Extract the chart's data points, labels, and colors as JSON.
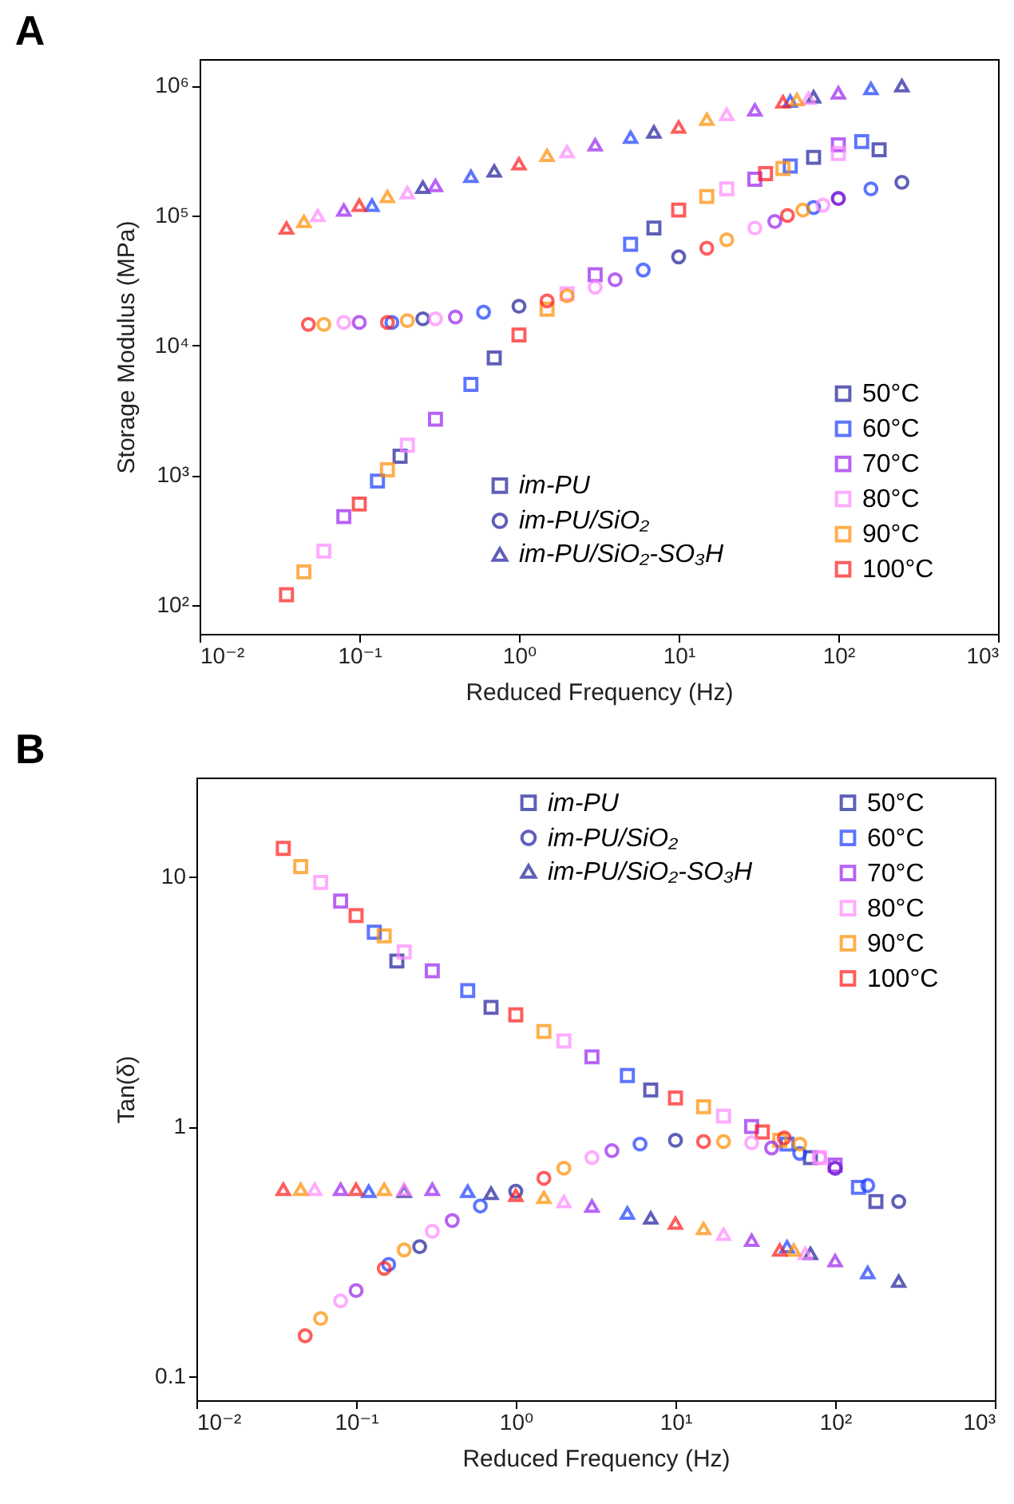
{
  "chart_data": [
    {
      "type": "scatter",
      "title": "A",
      "xlabel": "Reduced Frequency (Hz)",
      "ylabel": "Storage Modulus (MPa)",
      "log": "xy",
      "grid": false,
      "legend": "bottom right",
      "xlim": [
        0.01,
        1000
      ],
      "xticks": [
        {
          "value": 0.01,
          "label": "10⁻²"
        },
        {
          "value": 0.1,
          "label": "10⁻¹"
        },
        {
          "value": 1,
          "label": "10⁰"
        },
        {
          "value": 10,
          "label": "10¹"
        },
        {
          "value": 100,
          "label": "10²"
        },
        {
          "value": 1000,
          "label": "10³"
        }
      ],
      "ylim": [
        60,
        1600000
      ],
      "yticks": [
        {
          "value": 100,
          "label": "10²"
        },
        {
          "value": 1000,
          "label": "10³"
        },
        {
          "value": 10000,
          "label": "10⁴"
        },
        {
          "value": 100000,
          "label": "10⁵"
        },
        {
          "value": 1000000,
          "label": "10⁶"
        }
      ],
      "series": [
        {
          "name": "im-PU",
          "marker": "square",
          "color": "#1c1c9c",
          "x": [
            0.18,
            0.7,
            7,
            70,
            180,
            0.13,
            0.5,
            5,
            50,
            140,
            0.08,
            0.3,
            3,
            30,
            100,
            0.06,
            0.2,
            2,
            20,
            100,
            0.045,
            0.15,
            1.5,
            15,
            45,
            0.035,
            0.1,
            1,
            10,
            35
          ],
          "values": [
            1400,
            8000,
            80000,
            280000,
            320000,
            900,
            5000,
            60000,
            240000,
            370000,
            480,
            2700,
            35000,
            190000,
            350000,
            260,
            1700,
            25000,
            160000,
            300000,
            180,
            1100,
            19000,
            140000,
            230000,
            120,
            600,
            12000,
            110000,
            210000
          ],
          "colors": [
            "#1c1c9c",
            "#1c1c9c",
            "#1c1c9c",
            "#1c1c9c",
            "#1c1c9c",
            "#1a3cff",
            "#1a3cff",
            "#1a3cff",
            "#1a3cff",
            "#1a3cff",
            "#9a22ee",
            "#9a22ee",
            "#9a22ee",
            "#9a22ee",
            "#9a22ee",
            "#ff88ff",
            "#ff88ff",
            "#ff88ff",
            "#ff88ff",
            "#ff88ff",
            "#ff8c00",
            "#ff8c00",
            "#ff8c00",
            "#ff8c00",
            "#ff8c00",
            "#ff1a1a",
            "#ff1a1a",
            "#ff1a1a",
            "#ff1a1a",
            "#ff1a1a"
          ]
        },
        {
          "name": "im-PU/SiO₂",
          "marker": "circle",
          "color": "#1c1c9c",
          "x": [
            0.25,
            1,
            10,
            100,
            250,
            0.16,
            0.6,
            6,
            70,
            160,
            0.1,
            0.4,
            4,
            40,
            100,
            0.08,
            0.3,
            3,
            30,
            80,
            0.06,
            0.2,
            2,
            20,
            60,
            0.048,
            0.15,
            1.5,
            15,
            48
          ],
          "values": [
            16000,
            20000,
            48000,
            135000,
            180000,
            15000,
            18000,
            38000,
            115000,
            160000,
            15000,
            16500,
            32000,
            90000,
            135000,
            15000,
            16000,
            28000,
            80000,
            120000,
            14500,
            15500,
            24000,
            65000,
            110000,
            14500,
            15000,
            22000,
            56000,
            100000
          ],
          "colors": [
            "#1c1c9c",
            "#1c1c9c",
            "#1c1c9c",
            "#1c1c9c",
            "#1c1c9c",
            "#1a3cff",
            "#1a3cff",
            "#1a3cff",
            "#1a3cff",
            "#1a3cff",
            "#9a22ee",
            "#9a22ee",
            "#9a22ee",
            "#9a22ee",
            "#9a22ee",
            "#ff88ff",
            "#ff88ff",
            "#ff88ff",
            "#ff88ff",
            "#ff88ff",
            "#ff8c00",
            "#ff8c00",
            "#ff8c00",
            "#ff8c00",
            "#ff8c00",
            "#ff1a1a",
            "#ff1a1a",
            "#ff1a1a",
            "#ff1a1a",
            "#ff1a1a"
          ]
        },
        {
          "name": "im-PU/SiO₂-SO₃H",
          "marker": "triangle",
          "color": "#1c1c9c",
          "x": [
            0.25,
            0.7,
            7,
            70,
            250,
            0.12,
            0.5,
            5,
            50,
            160,
            0.08,
            0.3,
            3,
            30,
            100,
            0.055,
            0.2,
            2,
            20,
            65,
            0.045,
            0.15,
            1.5,
            15,
            55,
            0.035,
            0.1,
            1,
            10,
            45
          ],
          "values": [
            165000,
            220000,
            440000,
            820000,
            1000000,
            120000,
            200000,
            400000,
            760000,
            950000,
            110000,
            170000,
            350000,
            650000,
            880000,
            100000,
            150000,
            310000,
            600000,
            800000,
            90000,
            140000,
            290000,
            550000,
            780000,
            80000,
            120000,
            250000,
            480000,
            750000
          ],
          "colors": [
            "#1c1c9c",
            "#1c1c9c",
            "#1c1c9c",
            "#1c1c9c",
            "#1c1c9c",
            "#1a3cff",
            "#1a3cff",
            "#1a3cff",
            "#1a3cff",
            "#1a3cff",
            "#9a22ee",
            "#9a22ee",
            "#9a22ee",
            "#9a22ee",
            "#9a22ee",
            "#ff88ff",
            "#ff88ff",
            "#ff88ff",
            "#ff88ff",
            "#ff88ff",
            "#ff8c00",
            "#ff8c00",
            "#ff8c00",
            "#ff8c00",
            "#ff8c00",
            "#ff1a1a",
            "#ff1a1a",
            "#ff1a1a",
            "#ff1a1a",
            "#ff1a1a"
          ]
        },
        {
          "name": "50°C",
          "marker": "square",
          "color": "#1c1c9c"
        },
        {
          "name": "60°C",
          "marker": "square",
          "color": "#1a3cff"
        },
        {
          "name": "70°C",
          "marker": "square",
          "color": "#9a22ee"
        },
        {
          "name": "80°C",
          "marker": "square",
          "color": "#ff88ff"
        },
        {
          "name": "90°C",
          "marker": "square",
          "color": "#ff8c00"
        },
        {
          "name": "100°C",
          "marker": "square",
          "color": "#ff1a1a"
        }
      ]
    },
    {
      "type": "scatter",
      "title": "B",
      "xlabel": "Reduced Frequency (Hz)",
      "ylabel": "Tan(δ)",
      "log": "xy",
      "grid": false,
      "legend": "top right",
      "xlim": [
        0.01,
        1000
      ],
      "xticks": [
        {
          "value": 0.01,
          "label": "10⁻²"
        },
        {
          "value": 0.1,
          "label": "10⁻¹"
        },
        {
          "value": 1,
          "label": "10⁰"
        },
        {
          "value": 10,
          "label": "10¹"
        },
        {
          "value": 100,
          "label": "10²"
        },
        {
          "value": 1000,
          "label": "10³"
        }
      ],
      "ylim": [
        0.08,
        25
      ],
      "yticks": [
        0.1,
        1,
        10
      ],
      "series": [
        {
          "name": "im-PU",
          "marker": "square",
          "color": "#1c1c9c",
          "x": [
            0.18,
            0.7,
            7,
            70,
            180,
            0.13,
            0.5,
            5,
            50,
            140,
            0.08,
            0.3,
            3,
            30,
            100,
            0.06,
            0.2,
            2,
            20,
            80,
            0.045,
            0.15,
            1.5,
            15,
            45,
            0.035,
            0.1,
            1,
            10,
            35
          ],
          "values": [
            4.6,
            3.0,
            1.4,
            0.75,
            0.5,
            6,
            3.5,
            1.6,
            0.85,
            0.57,
            8,
            4.2,
            1.9,
            1.0,
            0.7,
            9.5,
            5,
            2.2,
            1.1,
            0.75,
            11,
            5.8,
            2.4,
            1.2,
            0.88,
            13,
            7,
            2.8,
            1.3,
            0.95
          ],
          "colors": [
            "#1c1c9c",
            "#1c1c9c",
            "#1c1c9c",
            "#1c1c9c",
            "#1c1c9c",
            "#1a3cff",
            "#1a3cff",
            "#1a3cff",
            "#1a3cff",
            "#1a3cff",
            "#9a22ee",
            "#9a22ee",
            "#9a22ee",
            "#9a22ee",
            "#9a22ee",
            "#ff88ff",
            "#ff88ff",
            "#ff88ff",
            "#ff88ff",
            "#ff88ff",
            "#ff8c00",
            "#ff8c00",
            "#ff8c00",
            "#ff8c00",
            "#ff8c00",
            "#ff1a1a",
            "#ff1a1a",
            "#ff1a1a",
            "#ff1a1a",
            "#ff1a1a"
          ]
        },
        {
          "name": "im-PU/SiO₂",
          "marker": "circle",
          "color": "#1c1c9c",
          "x": [
            0.25,
            1,
            10,
            100,
            250,
            0.16,
            0.6,
            6,
            60,
            160,
            0.1,
            0.4,
            4,
            40,
            100,
            0.08,
            0.3,
            3,
            30,
            80,
            0.06,
            0.2,
            2,
            20,
            60,
            0.048,
            0.15,
            1.5,
            15,
            48
          ],
          "values": [
            0.33,
            0.55,
            0.88,
            0.68,
            0.5,
            0.28,
            0.48,
            0.85,
            0.78,
            0.58,
            0.22,
            0.42,
            0.8,
            0.82,
            0.68,
            0.2,
            0.38,
            0.75,
            0.86,
            0.75,
            0.17,
            0.32,
            0.68,
            0.87,
            0.85,
            0.145,
            0.27,
            0.62,
            0.87,
            0.9
          ],
          "colors": [
            "#1c1c9c",
            "#1c1c9c",
            "#1c1c9c",
            "#1c1c9c",
            "#1c1c9c",
            "#1a3cff",
            "#1a3cff",
            "#1a3cff",
            "#1a3cff",
            "#1a3cff",
            "#9a22ee",
            "#9a22ee",
            "#9a22ee",
            "#9a22ee",
            "#9a22ee",
            "#ff88ff",
            "#ff88ff",
            "#ff88ff",
            "#ff88ff",
            "#ff88ff",
            "#ff8c00",
            "#ff8c00",
            "#ff8c00",
            "#ff8c00",
            "#ff8c00",
            "#ff1a1a",
            "#ff1a1a",
            "#ff1a1a",
            "#ff1a1a",
            "#ff1a1a"
          ]
        },
        {
          "name": "im-PU/SiO₂-SO₃H",
          "marker": "triangle",
          "color": "#1c1c9c",
          "x": [
            0.2,
            0.7,
            7,
            70,
            250,
            0.12,
            0.5,
            5,
            50,
            160,
            0.08,
            0.3,
            3,
            30,
            100,
            0.055,
            0.2,
            2,
            20,
            65,
            0.045,
            0.15,
            1.5,
            15,
            55,
            0.035,
            0.1,
            1,
            10,
            45
          ],
          "values": [
            0.55,
            0.54,
            0.43,
            0.31,
            0.24,
            0.55,
            0.55,
            0.45,
            0.33,
            0.26,
            0.56,
            0.56,
            0.48,
            0.35,
            0.29,
            0.56,
            0.56,
            0.5,
            0.37,
            0.31,
            0.56,
            0.56,
            0.52,
            0.39,
            0.32,
            0.56,
            0.56,
            0.53,
            0.41,
            0.32
          ],
          "colors": [
            "#1c1c9c",
            "#1c1c9c",
            "#1c1c9c",
            "#1c1c9c",
            "#1c1c9c",
            "#1a3cff",
            "#1a3cff",
            "#1a3cff",
            "#1a3cff",
            "#1a3cff",
            "#9a22ee",
            "#9a22ee",
            "#9a22ee",
            "#9a22ee",
            "#9a22ee",
            "#ff88ff",
            "#ff88ff",
            "#ff88ff",
            "#ff88ff",
            "#ff88ff",
            "#ff8c00",
            "#ff8c00",
            "#ff8c00",
            "#ff8c00",
            "#ff8c00",
            "#ff1a1a",
            "#ff1a1a",
            "#ff1a1a",
            "#ff1a1a",
            "#ff1a1a"
          ]
        },
        {
          "name": "50°C",
          "marker": "square",
          "color": "#1c1c9c"
        },
        {
          "name": "60°C",
          "marker": "square",
          "color": "#1a3cff"
        },
        {
          "name": "70°C",
          "marker": "square",
          "color": "#9a22ee"
        },
        {
          "name": "80°C",
          "marker": "square",
          "color": "#ff88ff"
        },
        {
          "name": "90°C",
          "marker": "square",
          "color": "#ff8c00"
        },
        {
          "name": "100°C",
          "marker": "square",
          "color": "#ff1a1a"
        }
      ]
    }
  ]
}
